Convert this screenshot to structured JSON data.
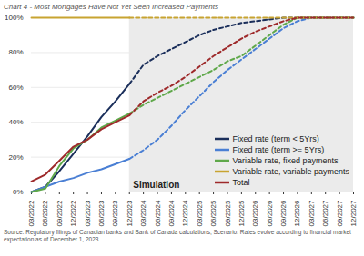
{
  "chart_data": {
    "type": "line",
    "title": "Chart 4 - Most Mortgages Have Not Yet Seen Increased Payments",
    "caption": "Source: Regulatory filings of Canadian banks and Bank of Canada calculations; Scenario: Rates evolve according to financial market expectation as of December 1, 2023.",
    "annotation": "Simulation",
    "simulation_start": "12/2023",
    "x": [
      "03/2022",
      "06/2022",
      "09/2022",
      "12/2022",
      "03/2023",
      "06/2023",
      "09/2023",
      "12/2023",
      "03/2024",
      "06/2024",
      "09/2024",
      "12/2024",
      "03/2025",
      "06/2025",
      "09/2025",
      "12/2025",
      "03/2026",
      "06/2026",
      "09/2026",
      "12/2026",
      "03/2027",
      "06/2027",
      "09/2027",
      "12/2027"
    ],
    "ylim": [
      0,
      100
    ],
    "yticks": [
      {
        "value": 0,
        "label": "0%"
      },
      {
        "value": 20,
        "label": "20%"
      },
      {
        "value": 40,
        "label": "40%"
      },
      {
        "value": 60,
        "label": "60%"
      },
      {
        "value": 80,
        "label": "80%"
      },
      {
        "value": 100,
        "label": "100%"
      }
    ],
    "grid": true,
    "legend": "lower right",
    "series": [
      {
        "name": "Fixed rate (term < 5Yrs)",
        "color": "#1b2f5b",
        "values": [
          0,
          3,
          12,
          22,
          32,
          43,
          52,
          62,
          73,
          78,
          82,
          86,
          90,
          93,
          95,
          97,
          98,
          99,
          100,
          100,
          100,
          100,
          100,
          100
        ]
      },
      {
        "name": "Fixed rate (term >= 5Yrs)",
        "color": "#4a7fd4",
        "values": [
          0,
          3,
          6,
          8,
          11,
          13,
          16,
          19,
          24,
          30,
          38,
          47,
          55,
          63,
          70,
          76,
          82,
          88,
          94,
          98,
          100,
          100,
          100,
          100
        ]
      },
      {
        "name": "Variable rate, fixed payments",
        "color": "#5fa84a",
        "values": [
          0,
          2,
          15,
          25,
          30,
          37,
          41,
          45,
          50,
          54,
          58,
          62,
          66,
          70,
          75,
          78,
          84,
          90,
          96,
          100,
          100,
          100,
          100,
          100
        ]
      },
      {
        "name": "Variable rate, variable payments",
        "color": "#c8a431",
        "values": [
          100,
          100,
          100,
          100,
          100,
          100,
          100,
          100,
          100,
          100,
          100,
          100,
          100,
          100,
          100,
          100,
          100,
          100,
          100,
          100,
          100,
          100,
          100,
          100
        ]
      },
      {
        "name": "Total",
        "color": "#9e2a2b",
        "values": [
          6,
          10,
          18,
          26,
          30,
          36,
          40,
          44,
          52,
          57,
          61,
          66,
          72,
          78,
          83,
          88,
          92,
          95,
          98,
          100,
          100,
          100,
          100,
          100
        ]
      }
    ]
  }
}
